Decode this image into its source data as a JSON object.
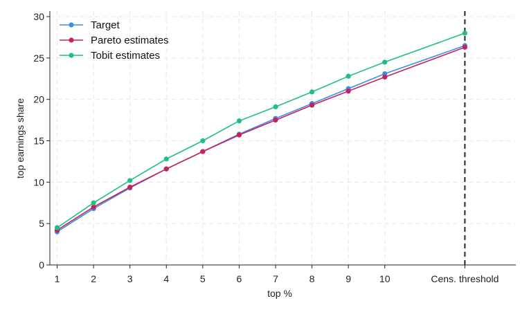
{
  "chart_data": {
    "type": "line",
    "title": "",
    "xlabel": "top %",
    "ylabel": "top earnings share",
    "x_ticks": [
      "1",
      "2",
      "3",
      "4",
      "5",
      "6",
      "7",
      "8",
      "9",
      "10",
      "Cens. threshold"
    ],
    "x_positions": [
      1,
      2,
      3,
      4,
      5,
      6,
      7,
      8,
      9,
      10,
      12.2
    ],
    "xlim": [
      0.8,
      13.6
    ],
    "ylim": [
      0,
      30
    ],
    "y_ticks": [
      0,
      5,
      10,
      15,
      20,
      25,
      30
    ],
    "grid": true,
    "legend_position": "top-left",
    "reference_line": {
      "x": 12.2,
      "style": "dashed",
      "color": "#222222"
    },
    "series": [
      {
        "name": "Target",
        "color": "#3a8ee6",
        "x": [
          1,
          2,
          3,
          4,
          5,
          6,
          7,
          8,
          9,
          10,
          12.2
        ],
        "values": [
          4.0,
          6.8,
          9.3,
          11.6,
          13.7,
          15.8,
          17.7,
          19.5,
          21.3,
          23.1,
          26.5
        ]
      },
      {
        "name": "Pareto estimates",
        "color": "#c8205e",
        "x": [
          1,
          2,
          3,
          4,
          5,
          6,
          7,
          8,
          9,
          10,
          12.2
        ],
        "values": [
          4.2,
          7.0,
          9.4,
          11.6,
          13.7,
          15.7,
          17.5,
          19.3,
          21.0,
          22.7,
          26.3
        ]
      },
      {
        "name": "Tobit estimates",
        "color": "#1dbf85",
        "x": [
          1,
          2,
          3,
          4,
          5,
          6,
          7,
          8,
          9,
          10,
          12.2
        ],
        "values": [
          4.5,
          7.5,
          10.2,
          12.8,
          15.0,
          17.4,
          19.1,
          20.9,
          22.8,
          24.5,
          28.0
        ]
      }
    ]
  }
}
